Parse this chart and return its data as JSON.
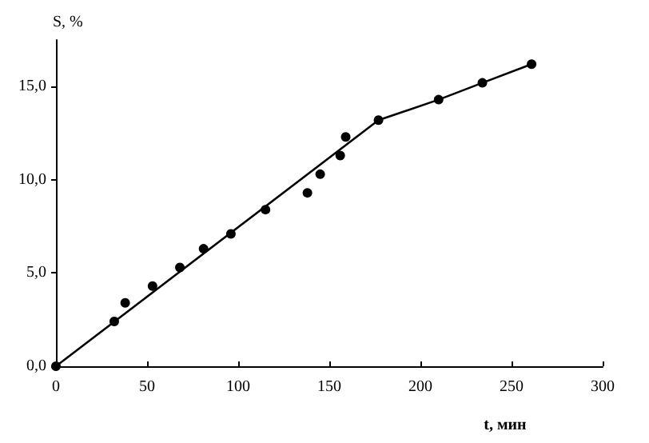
{
  "chart_data": {
    "type": "scatter",
    "xlabel": "t, мин",
    "ylabel": "S, %",
    "xlim": [
      0,
      300
    ],
    "xticks": [
      0,
      50,
      100,
      150,
      200,
      250,
      300
    ],
    "ylim": [
      0,
      17.5
    ],
    "yticks": [
      {
        "value": 0,
        "label": "0,0"
      },
      {
        "value": 5,
        "label": "5,0"
      },
      {
        "value": 10,
        "label": "10,0"
      },
      {
        "value": 15,
        "label": "15,0"
      }
    ],
    "grid": false,
    "marker": "circle",
    "series": [
      {
        "color": "#000000",
        "x": [
          0,
          32,
          38,
          53,
          68,
          81,
          96,
          115,
          138,
          145,
          156,
          159,
          177,
          210,
          234,
          261
        ],
        "values": [
          0,
          2.4,
          3.4,
          4.3,
          5.3,
          6.3,
          7.1,
          8.4,
          9.3,
          10.3,
          11.3,
          12.3,
          13.2,
          14.3,
          15.2,
          16.2
        ]
      },
      {
        "type": "line",
        "color": "#000000",
        "line_style": "solid",
        "marker": "none",
        "x": [
          0,
          177,
          210,
          234,
          261
        ],
        "values": [
          0,
          13.2,
          14.3,
          15.2,
          16.2
        ]
      }
    ]
  }
}
